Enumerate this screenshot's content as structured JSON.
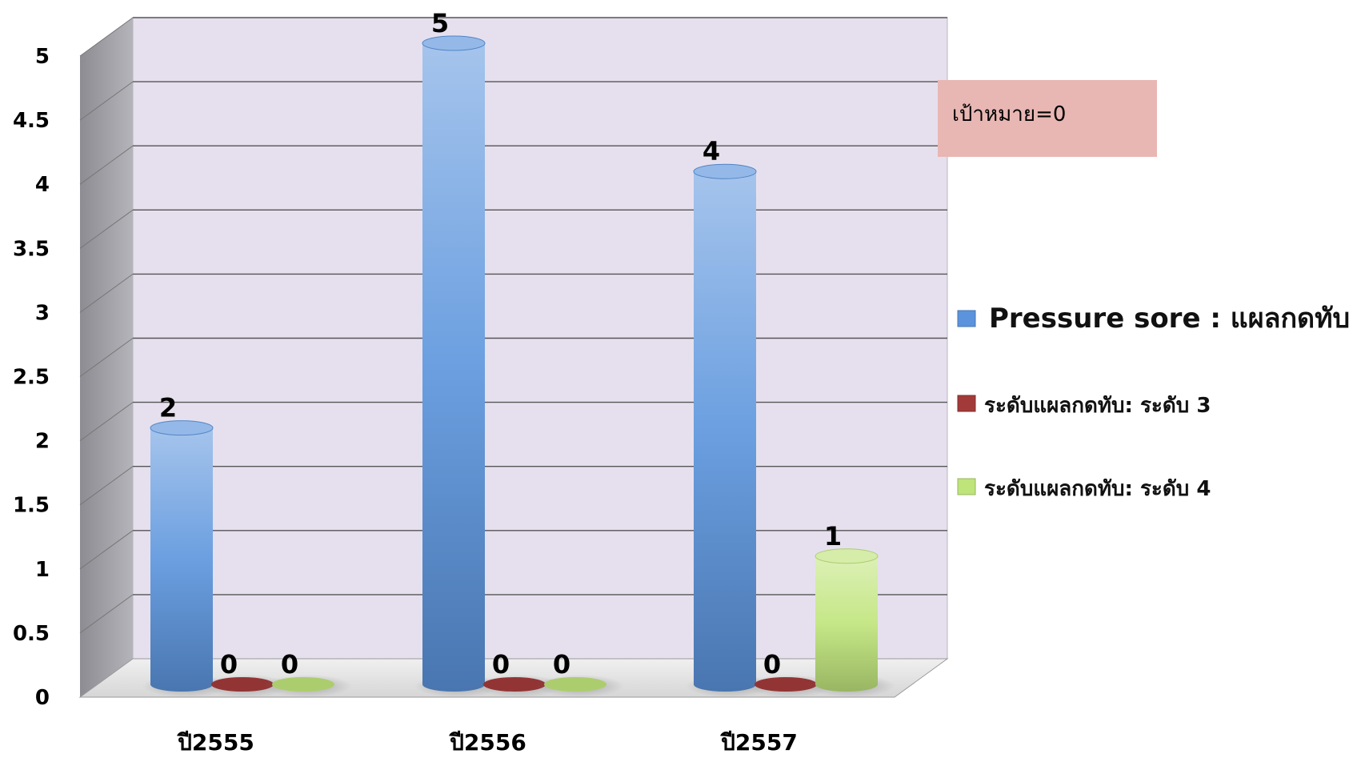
{
  "chart_data": {
    "type": "bar",
    "categories": [
      "ปี2555",
      "ปี2556",
      "ปี2557"
    ],
    "series": [
      {
        "name": "Pressure sore  :   แผลกดทับใหม่",
        "values": [
          2,
          5,
          4
        ],
        "color": "#5b94dc"
      },
      {
        "name": "ระดับแผลกดทับ: ระดับ 3",
        "values": [
          0,
          0,
          0
        ],
        "color": "#a33a3a"
      },
      {
        "name": "ระดับแผลกดทับ: ระดับ 4",
        "values": [
          0,
          0,
          1
        ],
        "color": "#bfe47a"
      }
    ],
    "ylim": [
      0,
      5
    ],
    "yticks": [
      "0",
      "0.5",
      "1",
      "1.5",
      "2",
      "2.5",
      "3",
      "3.5",
      "4",
      "4.5",
      "5"
    ],
    "grid": true,
    "legend_position": "right",
    "annotation": "เป้าหมาย=0"
  },
  "colors": {
    "wall": "#e6e0ee",
    "side_wall": "#9a9aa0",
    "grid": "#555555"
  }
}
